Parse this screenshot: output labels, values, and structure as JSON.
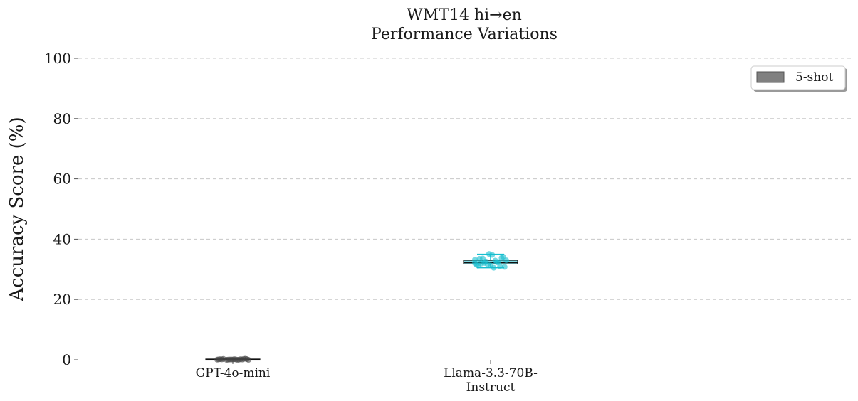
{
  "chart_data": {
    "type": "box",
    "title_lines": [
      "WMT14 hi→en",
      "Performance Variations"
    ],
    "ylabel": "Accuracy Score (%)",
    "ylim": [
      0,
      100
    ],
    "yticks": [
      0,
      20,
      40,
      60,
      80,
      100
    ],
    "grid": "y-dashed",
    "legend": {
      "placement": "top-right",
      "entries": [
        {
          "label": "5-shot",
          "color": "#808080"
        }
      ]
    },
    "categories": [
      {
        "label_lines": [
          "GPT-4o-mini"
        ]
      },
      {
        "label_lines": [
          "Llama-3.3-70B-",
          "Instruct"
        ]
      }
    ],
    "boxes": [
      {
        "category": 0,
        "color": "#333333",
        "point_color": "#444444",
        "whisker_low": 0.0,
        "q1": 0.0,
        "median": 0.1,
        "q3": 0.25,
        "whisker_high": 0.4,
        "points": [
          0.05,
          0.1,
          0.2,
          0.0,
          0.15,
          0.3,
          0.1,
          0.05,
          0.2,
          0.35,
          0.0,
          0.1,
          0.15,
          0.25,
          0.05,
          0.1,
          0.3,
          0.0,
          0.2,
          0.1
        ]
      },
      {
        "category": 1,
        "color": "#17becf",
        "point_color": "#17becf",
        "whisker_low": 30.5,
        "q1": 31.8,
        "median": 32.3,
        "q3": 33.0,
        "whisker_high": 35.0,
        "points": [
          33.2,
          31.0,
          34.8,
          32.1,
          31.5,
          33.8,
          30.5,
          32.6,
          31.2,
          34.2,
          32.9,
          31.7,
          33.5,
          30.8,
          32.3,
          35.1,
          31.9,
          33.0,
          32.4,
          31.3,
          33.6,
          32.0
        ]
      }
    ]
  }
}
